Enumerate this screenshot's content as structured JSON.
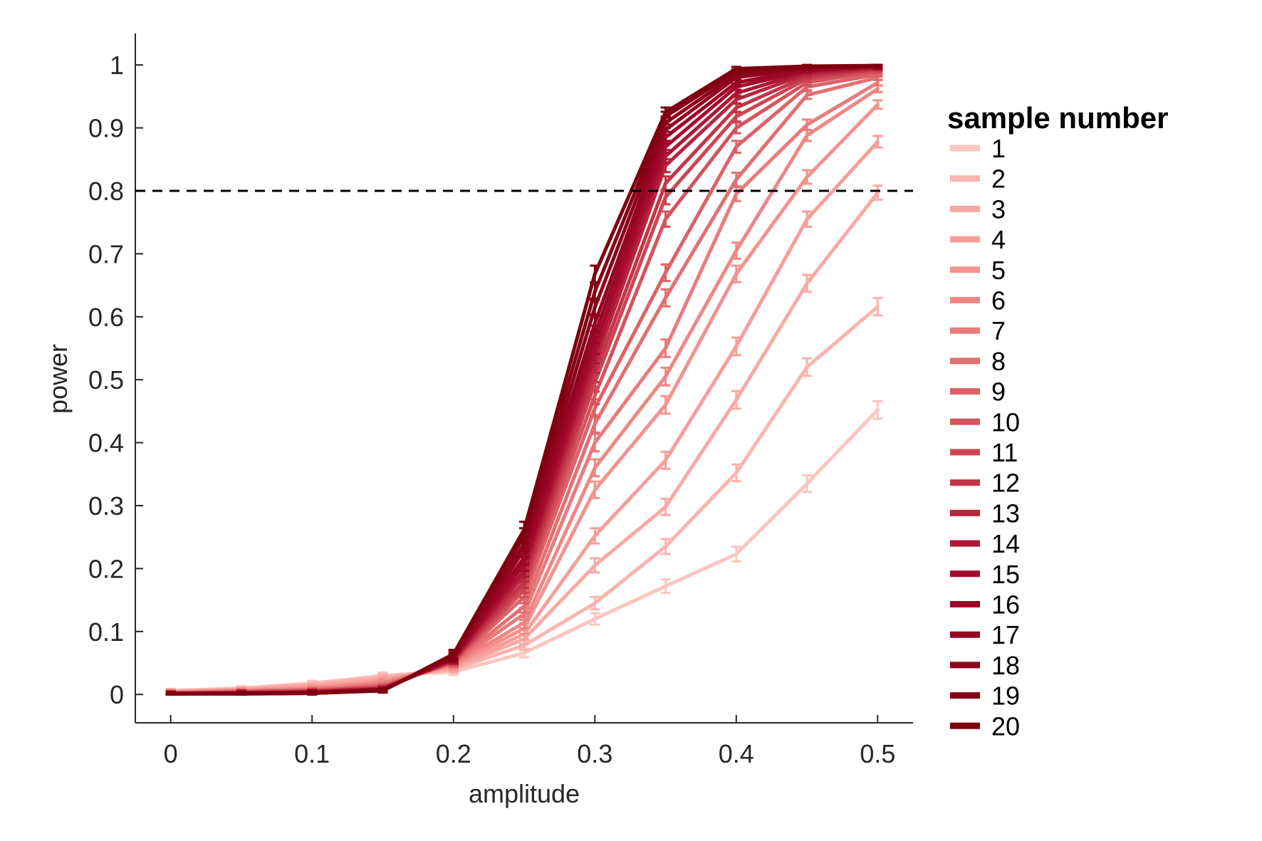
{
  "chart_data": {
    "type": "line",
    "xlabel": "amplitude",
    "ylabel": "power",
    "xlim": [
      -0.025,
      0.525
    ],
    "ylim": [
      -0.045,
      1.05
    ],
    "x_ticks": [
      "0",
      "0.1",
      "0.2",
      "0.3",
      "0.4",
      "0.5"
    ],
    "x_tick_values": [
      0,
      0.1,
      0.2,
      0.3,
      0.4,
      0.5
    ],
    "y_ticks": [
      "0",
      "0.1",
      "0.2",
      "0.3",
      "0.4",
      "0.5",
      "0.6",
      "0.7",
      "0.8",
      "0.9",
      "1"
    ],
    "y_tick_values": [
      0,
      0.1,
      0.2,
      0.3,
      0.4,
      0.5,
      0.6,
      0.7,
      0.8,
      0.9,
      1
    ],
    "reference_line": {
      "y": 0.8,
      "style": "dashed",
      "color": "#000000"
    },
    "grid": false,
    "legend_title": "sample number",
    "legend_position": "right",
    "error_bars": true,
    "x": [
      0,
      0.05,
      0.1,
      0.15,
      0.2,
      0.25,
      0.3,
      0.35,
      0.4,
      0.45,
      0.5
    ],
    "series": [
      {
        "name": "1",
        "color": "#fcc5c0",
        "values": [
          0.006,
          0.01,
          0.018,
          0.03,
          0.036,
          0.066,
          0.12,
          0.172,
          0.223,
          0.335,
          0.452
        ]
      },
      {
        "name": "2",
        "color": "#fbb4ae",
        "values": [
          0.005,
          0.009,
          0.016,
          0.028,
          0.04,
          0.078,
          0.145,
          0.235,
          0.352,
          0.52,
          0.616
        ]
      },
      {
        "name": "3",
        "color": "#f9a9a3",
        "values": [
          0.005,
          0.008,
          0.014,
          0.025,
          0.042,
          0.088,
          0.205,
          0.298,
          0.468,
          0.653,
          0.797
        ]
      },
      {
        "name": "4",
        "color": "#f69e99",
        "values": [
          0.004,
          0.007,
          0.012,
          0.022,
          0.044,
          0.096,
          0.252,
          0.372,
          0.553,
          0.755,
          0.878
        ]
      },
      {
        "name": "5",
        "color": "#f3928e",
        "values": [
          0.004,
          0.006,
          0.01,
          0.02,
          0.046,
          0.105,
          0.325,
          0.46,
          0.668,
          0.822,
          0.937
        ]
      },
      {
        "name": "6",
        "color": "#ee8784",
        "values": [
          0.003,
          0.006,
          0.009,
          0.018,
          0.048,
          0.114,
          0.36,
          0.505,
          0.705,
          0.888,
          0.962
        ]
      },
      {
        "name": "7",
        "color": "#e97b7b",
        "values": [
          0.003,
          0.005,
          0.008,
          0.016,
          0.049,
          0.128,
          0.4,
          0.55,
          0.795,
          0.905,
          0.972
        ]
      },
      {
        "name": "8",
        "color": "#e36f71",
        "values": [
          0.003,
          0.005,
          0.007,
          0.014,
          0.05,
          0.14,
          0.43,
          0.63,
          0.818,
          0.952,
          0.98
        ]
      },
      {
        "name": "9",
        "color": "#dc6267",
        "values": [
          0.002,
          0.004,
          0.006,
          0.013,
          0.051,
          0.155,
          0.455,
          0.67,
          0.87,
          0.965,
          0.985
        ]
      },
      {
        "name": "10",
        "color": "#d4545d",
        "values": [
          0.002,
          0.004,
          0.006,
          0.012,
          0.052,
          0.165,
          0.475,
          0.755,
          0.9,
          0.972,
          0.99
        ]
      },
      {
        "name": "11",
        "color": "#cc4552",
        "values": [
          0.002,
          0.003,
          0.005,
          0.011,
          0.053,
          0.172,
          0.495,
          0.79,
          0.918,
          0.978,
          0.992
        ]
      },
      {
        "name": "12",
        "color": "#c23548",
        "values": [
          0.002,
          0.003,
          0.005,
          0.01,
          0.054,
          0.18,
          0.51,
          0.812,
          0.932,
          0.982,
          0.994
        ]
      },
      {
        "name": "13",
        "color": "#b8253e",
        "values": [
          0.001,
          0.003,
          0.004,
          0.009,
          0.055,
          0.19,
          0.525,
          0.84,
          0.945,
          0.986,
          0.995
        ]
      },
      {
        "name": "14",
        "color": "#ae1535",
        "values": [
          0.001,
          0.002,
          0.004,
          0.009,
          0.056,
          0.198,
          0.54,
          0.855,
          0.955,
          0.989,
          0.996
        ]
      },
      {
        "name": "15",
        "color": "#a40a2d",
        "values": [
          0.001,
          0.002,
          0.003,
          0.008,
          0.057,
          0.208,
          0.555,
          0.87,
          0.965,
          0.991,
          0.997
        ]
      },
      {
        "name": "16",
        "color": "#9b0727",
        "values": [
          0.001,
          0.002,
          0.003,
          0.008,
          0.058,
          0.218,
          0.572,
          0.885,
          0.972,
          0.993,
          0.998
        ]
      },
      {
        "name": "17",
        "color": "#930521",
        "values": [
          0.001,
          0.002,
          0.003,
          0.007,
          0.059,
          0.23,
          0.59,
          0.897,
          0.98,
          0.995,
          0.998
        ]
      },
      {
        "name": "18",
        "color": "#8c031b",
        "values": [
          0.001,
          0.002,
          0.003,
          0.007,
          0.06,
          0.24,
          0.615,
          0.908,
          0.985,
          0.996,
          0.999
        ]
      },
      {
        "name": "19",
        "color": "#850115",
        "values": [
          0.001,
          0.001,
          0.002,
          0.006,
          0.062,
          0.252,
          0.64,
          0.918,
          0.99,
          0.997,
          0.999
        ]
      },
      {
        "name": "20",
        "color": "#7e0010",
        "values": [
          0.001,
          0.001,
          0.002,
          0.006,
          0.064,
          0.262,
          0.668,
          0.925,
          0.994,
          0.998,
          0.999
        ]
      }
    ]
  }
}
